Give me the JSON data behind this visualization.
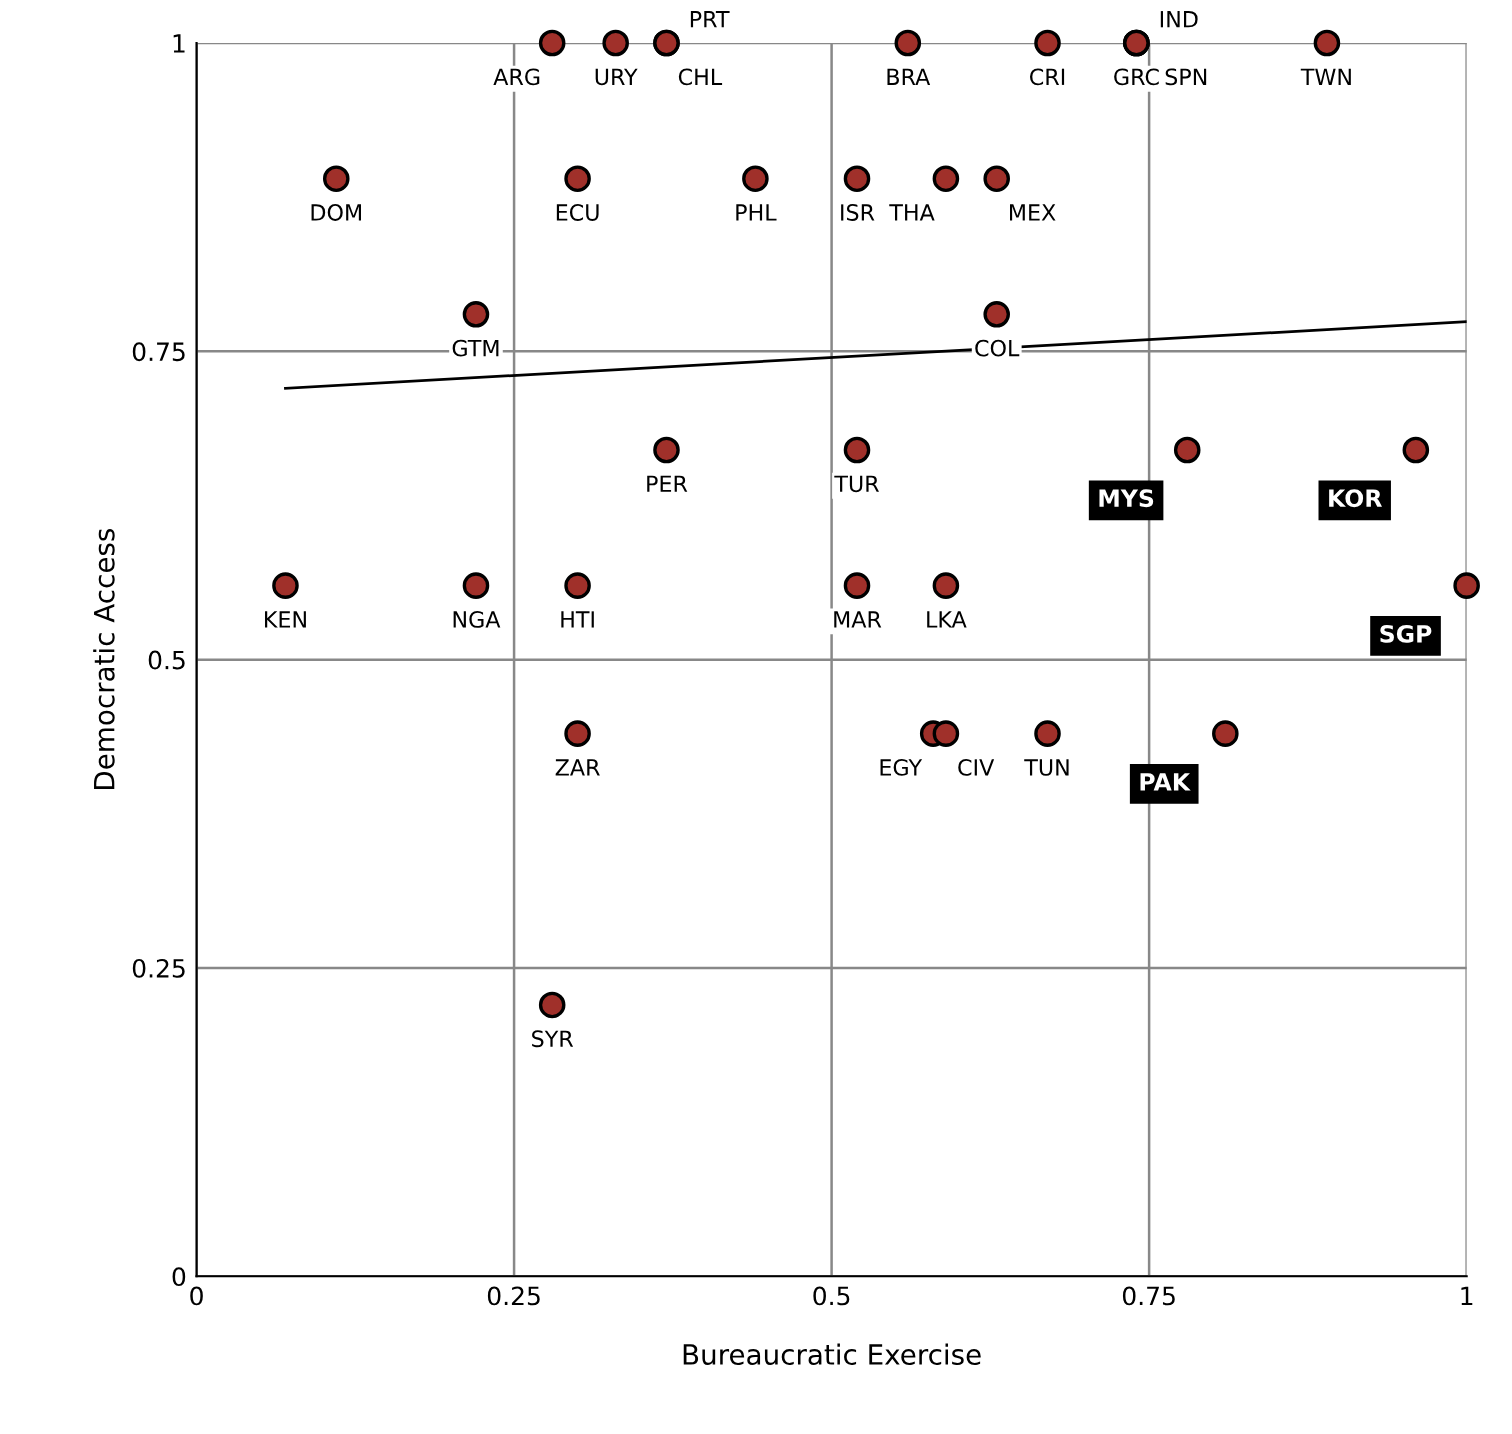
{
  "chart_data": {
    "type": "scatter",
    "xlabel": "Bureaucratic Exercise",
    "ylabel": "Democratic Access",
    "xlim": [
      0,
      1
    ],
    "ylim": [
      0,
      1
    ],
    "xticks": [
      0,
      {
        "value": 0.25,
        "label": "0.25"
      },
      {
        "value": 0.5,
        "label": "0.5"
      },
      {
        "value": 0.75,
        "label": "0.75"
      },
      1
    ],
    "yticks": [
      0,
      {
        "value": 0.25,
        "label": "0.25"
      },
      {
        "value": 0.5,
        "label": "0.5"
      },
      {
        "value": 0.75,
        "label": "0.75"
      },
      1
    ],
    "grid": true,
    "legend": false,
    "marker": "circle",
    "series": [
      {
        "color": "#a0302a",
        "x": [
          0.28,
          0.33,
          0.37,
          0.37,
          0.56,
          0.67,
          0.74,
          0.74,
          0.74,
          0.89,
          0.11,
          0.3,
          0.44,
          0.52,
          0.59,
          0.63,
          0.22,
          0.63,
          0.37,
          0.52,
          0.07,
          0.22,
          0.3,
          0.52,
          0.59,
          0.3,
          0.58,
          0.59,
          0.67,
          0.28
        ],
        "values": [
          1,
          1,
          1,
          1,
          1,
          1,
          1,
          1,
          1,
          1,
          0.89,
          0.89,
          0.89,
          0.89,
          0.89,
          0.89,
          0.78,
          0.78,
          0.67,
          0.67,
          0.56,
          0.56,
          0.56,
          0.56,
          0.56,
          0.44,
          0.44,
          0.44,
          0.44,
          0.22
        ],
        "value_labels": [
          "ARG",
          "URY",
          "CHL",
          "PRT",
          "BRA",
          "CRI",
          "GRC",
          "IND",
          "SPN",
          "TWN",
          "DOM",
          "ECU",
          "PHL",
          "ISR",
          "THA",
          "MEX",
          "GTM",
          "COL",
          "PER",
          "TUR",
          "KEN",
          "NGA",
          "HTI",
          "MAR",
          "LKA",
          "ZAR",
          "EGY",
          "CIV",
          "TUN",
          "SYR"
        ]
      },
      {
        "color": "#a0302a",
        "x": [
          0.78,
          0.96,
          1.0,
          0.81
        ],
        "values": [
          0.67,
          0.67,
          0.56,
          0.44
        ],
        "value_labels": [
          "MYS",
          "KOR",
          "SGP",
          "PAK"
        ]
      },
      {
        "type": "line",
        "marker": "none",
        "color": "#000000",
        "x": [
          0.07,
          1.0
        ],
        "values": [
          0.72,
          0.774
        ]
      }
    ]
  }
}
